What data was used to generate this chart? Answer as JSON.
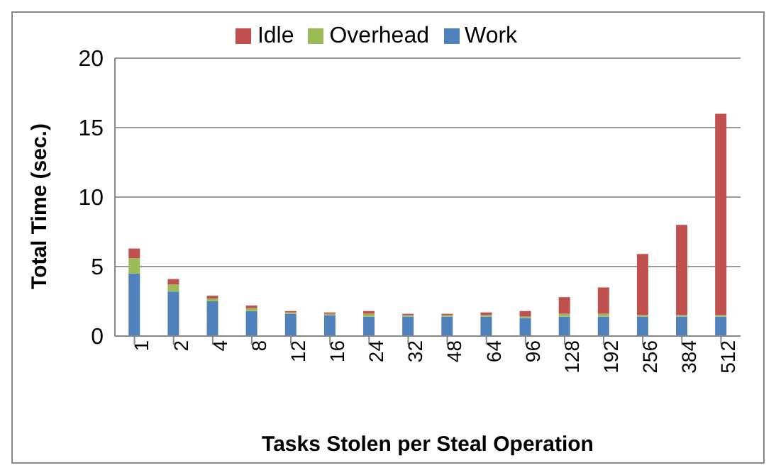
{
  "chart_data": {
    "type": "bar",
    "stacked": true,
    "xlabel": "Tasks Stolen per Steal Operation",
    "ylabel": "Total Time (sec.)",
    "categories": [
      "1",
      "2",
      "4",
      "8",
      "12",
      "16",
      "24",
      "32",
      "48",
      "64",
      "96",
      "128",
      "192",
      "256",
      "384",
      "512"
    ],
    "series": [
      {
        "name": "Work",
        "color": "#4f81bd",
        "values": [
          4.5,
          3.2,
          2.5,
          1.8,
          1.6,
          1.5,
          1.4,
          1.4,
          1.4,
          1.4,
          1.3,
          1.4,
          1.4,
          1.4,
          1.4,
          1.4
        ]
      },
      {
        "name": "Overhead",
        "color": "#9bbb59",
        "values": [
          1.1,
          0.5,
          0.2,
          0.2,
          0.1,
          0.1,
          0.2,
          0.1,
          0.1,
          0.1,
          0.1,
          0.2,
          0.2,
          0.1,
          0.1,
          0.1
        ]
      },
      {
        "name": "Idle",
        "color": "#c0504d",
        "values": [
          0.7,
          0.4,
          0.2,
          0.2,
          0.1,
          0.1,
          0.2,
          0.1,
          0.1,
          0.2,
          0.4,
          1.2,
          1.9,
          4.4,
          6.5,
          14.5
        ]
      }
    ],
    "ylim": [
      0,
      20
    ],
    "yticks": [
      0,
      5,
      10,
      15,
      20
    ],
    "grid": "y",
    "legend": "top"
  }
}
